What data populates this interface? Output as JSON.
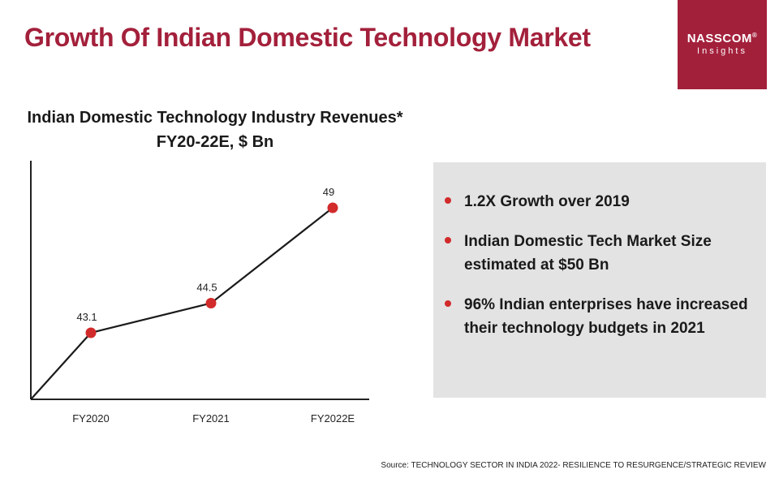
{
  "title": "Growth Of Indian Domestic Technology Market",
  "logo": {
    "name": "NASSCOM",
    "registered": "®",
    "sub": "Insights"
  },
  "chart_data": {
    "type": "line",
    "title_line1": "Indian Domestic Technology Industry Revenues*",
    "title_line2": "FY20-22E, $ Bn",
    "categories": [
      "FY2020",
      "FY2021",
      "FY2022E"
    ],
    "values": [
      43.1,
      44.5,
      49
    ],
    "value_labels": [
      "43.1",
      "44.5",
      "49"
    ],
    "line_color": "#1a1a1a",
    "marker_color": "#d22b2b",
    "grid": false,
    "y_axis_labels": false
  },
  "highlights": [
    "1.2X Growth over 2019",
    "Indian Domestic Tech Market Size estimated at $50 Bn",
    "96% Indian enterprises have increased their technology budgets in 2021"
  ],
  "source": "Source: TECHNOLOGY SECTOR IN INDIA 2022- RESILIENCE TO RESURGENCE/STRATEGIC REVIEW",
  "colors": {
    "brand": "#a3203b",
    "bullet": "#d22b2b",
    "panel": "#e3e3e3"
  }
}
